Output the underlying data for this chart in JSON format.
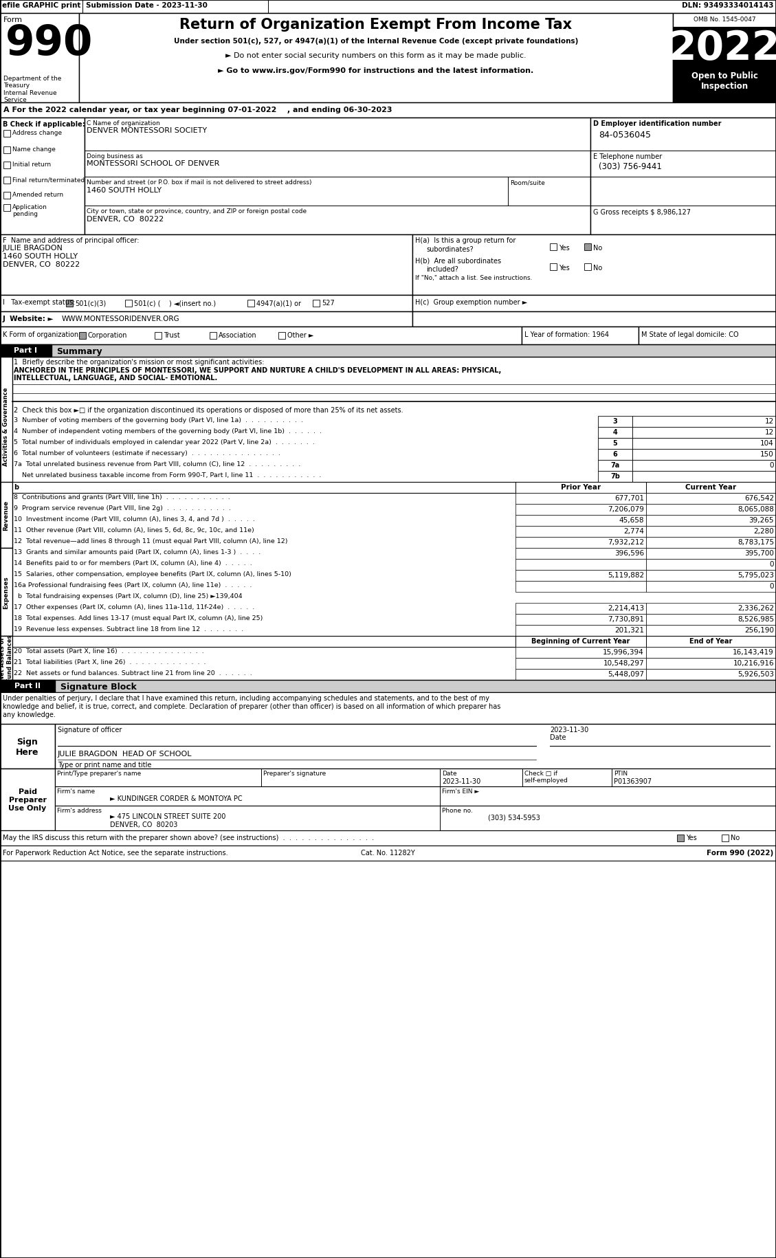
{
  "title_main": "Return of Organization Exempt From Income Tax",
  "subtitle1": "Under section 501(c), 527, or 4947(a)(1) of the Internal Revenue Code (except private foundations)",
  "subtitle2": "► Do not enter social security numbers on this form as it may be made public.",
  "subtitle3": "► Go to www.irs.gov/Form990 for instructions and the latest information.",
  "year": "2022",
  "omb": "OMB No. 1545-0047",
  "open_to_public": "Open to Public\nInspection",
  "efile_text": "efile GRAPHIC print",
  "submission_date": "Submission Date - 2023-11-30",
  "dln": "DLN: 93493334014143",
  "dept": "Department of the\nTreasury\nInternal Revenue\nService",
  "part_a": "A For the 2022 calendar year, or tax year beginning 07-01-2022    , and ending 06-30-2023",
  "check_b": "B Check if applicable:",
  "check_items": [
    "Address change",
    "Name change",
    "Initial return",
    "Final return/terminated",
    "Amended return",
    "Application\npending"
  ],
  "org_name_label": "C Name of organization",
  "org_name": "DENVER MONTESSORI SOCIETY",
  "dba_label": "Doing business as",
  "dba": "MONTESSORI SCHOOL OF DENVER",
  "address_label": "Number and street (or P.O. box if mail is not delivered to street address)",
  "address": "1460 SOUTH HOLLY",
  "room_label": "Room/suite",
  "city_label": "City or town, state or province, country, and ZIP or foreign postal code",
  "city": "DENVER, CO  80222",
  "ein_label": "D Employer identification number",
  "ein": "84-0536045",
  "phone_label": "E Telephone number",
  "phone": "(303) 756-9441",
  "gross_receipts": "G Gross receipts $ 8,986,127",
  "principal_label": "F  Name and address of principal officer:",
  "principal_name": "JULIE BRAGDON",
  "principal_addr1": "1460 SOUTH HOLLY",
  "principal_addr2": "DENVER, CO  80222",
  "ha_label": "H(a)  Is this a group return for",
  "ha_sub": "subordinates?",
  "ha_yes": "Yes",
  "ha_no": "No",
  "hb_label": "H(b)  Are all subordinates",
  "hb_sub": "included?",
  "hb_yes": "Yes",
  "hb_no": "No",
  "hb_note": "If \"No,\" attach a list. See instructions.",
  "hc_label": "H(c)  Group exemption number ►",
  "tax_exempt_label": "I   Tax-exempt status:",
  "tax_501c3": "501(c)(3)",
  "tax_501c": "501(c) (    ) ◄(insert no.)",
  "tax_4947": "4947(a)(1) or",
  "tax_527": "527",
  "website_label": "J  Website: ►",
  "website": "WWW.MONTESSORIDENVER.ORG",
  "form_org_label": "K Form of organization:",
  "form_corp": "Corporation",
  "form_trust": "Trust",
  "form_assoc": "Association",
  "form_other": "Other ►",
  "year_form_label": "L Year of formation: 1964",
  "state_label": "M State of legal domicile: CO",
  "sidebar_governance": "Activities & Governance",
  "sidebar_revenue": "Revenue",
  "sidebar_expenses": "Expenses",
  "sidebar_netassets": "Net Assets or\nFund Balances",
  "line2": "2  Check this box ►□ if the organization discontinued its operations or disposed of more than 25% of its net assets.",
  "line3_label": "3  Number of voting members of the governing body (Part VI, line 1a)  .  .  .  .  .  .  .  .  .  .",
  "line3_num": "3",
  "line3_val": "12",
  "line4_label": "4  Number of independent voting members of the governing body (Part VI, line 1b)  .  .  .  .  .  .",
  "line4_num": "4",
  "line4_val": "12",
  "line5_label": "5  Total number of individuals employed in calendar year 2022 (Part V, line 2a)  .  .  .  .  .  .  .",
  "line5_num": "5",
  "line5_val": "104",
  "line6_label": "6  Total number of volunteers (estimate if necessary)  .  .  .  .  .  .  .  .  .  .  .  .  .  .  .",
  "line6_num": "6",
  "line6_val": "150",
  "line7a_label": "7a  Total unrelated business revenue from Part VIII, column (C), line 12  .  .  .  .  .  .  .  .  .",
  "line7a_num": "7a",
  "line7a_val": "0",
  "line7b_label": "    Net unrelated business taxable income from Form 990-T, Part I, line 11  .  .  .  .  .  .  .  .  .  .  .",
  "line7b_num": "7b",
  "line7b_val": "",
  "col_prior": "Prior Year",
  "col_current": "Current Year",
  "line8_label": "8  Contributions and grants (Part VIII, line 1h)  .  .  .  .  .  .  .  .  .  .  .",
  "line8_prior": "677,701",
  "line8_current": "676,542",
  "line9_label": "9  Program service revenue (Part VIII, line 2g)  .  .  .  .  .  .  .  .  .  .  .",
  "line9_prior": "7,206,079",
  "line9_current": "8,065,088",
  "line10_label": "10  Investment income (Part VIII, column (A), lines 3, 4, and 7d )  .  .  .  .  .",
  "line10_prior": "45,658",
  "line10_current": "39,265",
  "line11_label": "11  Other revenue (Part VIII, column (A), lines 5, 6d, 8c, 9c, 10c, and 11e)",
  "line11_prior": "2,774",
  "line11_current": "2,280",
  "line12_label": "12  Total revenue—add lines 8 through 11 (must equal Part VIII, column (A), line 12)",
  "line12_prior": "7,932,212",
  "line12_current": "8,783,175",
  "line13_label": "13  Grants and similar amounts paid (Part IX, column (A), lines 1-3 )  .  .  .  .",
  "line13_prior": "396,596",
  "line13_current": "395,700",
  "line14_label": "14  Benefits paid to or for members (Part IX, column (A), line 4)  .  .  .  .  .",
  "line14_prior": "",
  "line14_current": "0",
  "line15_label": "15  Salaries, other compensation, employee benefits (Part IX, column (A), lines 5-10)",
  "line15_prior": "5,119,882",
  "line15_current": "5,795,023",
  "line16a_label": "16a Professional fundraising fees (Part IX, column (A), line 11e)  .  .  .  .  .",
  "line16a_prior": "",
  "line16a_current": "0",
  "line16b_label": "  b  Total fundraising expenses (Part IX, column (D), line 25) ►139,404",
  "line17_label": "17  Other expenses (Part IX, column (A), lines 11a-11d, 11f-24e)  .  .  .  .  .",
  "line17_prior": "2,214,413",
  "line17_current": "2,336,262",
  "line18_label": "18  Total expenses. Add lines 13-17 (must equal Part IX, column (A), line 25)",
  "line18_prior": "7,730,891",
  "line18_current": "8,526,985",
  "line19_label": "19  Revenue less expenses. Subtract line 18 from line 12  .  .  .  .  .  .  .",
  "line19_prior": "201,321",
  "line19_current": "256,190",
  "col_begin": "Beginning of Current Year",
  "col_end": "End of Year",
  "line20_label": "20  Total assets (Part X, line 16)  .  .  .  .  .  .  .  .  .  .  .  .  .  .",
  "line20_begin": "15,996,394",
  "line20_end": "16,143,419",
  "line21_label": "21  Total liabilities (Part X, line 26)  .  .  .  .  .  .  .  .  .  .  .  .  .",
  "line21_begin": "10,548,297",
  "line21_end": "10,216,916",
  "line22_label": "22  Net assets or fund balances. Subtract line 21 from line 20  .  .  .  .  .  .",
  "line22_begin": "5,448,097",
  "line22_end": "5,926,503",
  "sig_note_line1": "Under penalties of perjury, I declare that I have examined this return, including accompanying schedules and statements, and to the best of my",
  "sig_note_line2": "knowledge and belief, it is true, correct, and complete. Declaration of preparer (other than officer) is based on all information of which preparer has",
  "sig_note_line3": "any knowledge.",
  "sign_here": "Sign\nHere",
  "sig_officer_label": "Signature of officer",
  "sig_name": "JULIE BRAGDON  HEAD OF SCHOOL",
  "sig_type_label": "Type or print name and title",
  "paid_label": "Paid\nPreparer\nUse Only",
  "preparer_name_label": "Print/Type preparer's name",
  "preparer_sig_label": "Preparer's signature",
  "preparer_date_label": "Date",
  "preparer_check_label": "Check □ if\nself-employed",
  "preparer_ptin_label": "PTIN",
  "preparer_date": "2023-11-30",
  "preparer_ptin": "P01363907",
  "firm_name_label": "Firm's name",
  "firm_name": "► KUNDINGER CORDER & MONTOYA PC",
  "firm_ein_label": "Firm's EIN ►",
  "firm_addr_label": "Firm's address",
  "firm_addr": "► 475 LINCOLN STREET SUITE 200",
  "firm_city": "DENVER, CO  80203",
  "firm_phone_label": "Phone no.",
  "firm_phone": "(303) 534-5953",
  "discuss_label": "May the IRS discuss this return with the preparer shown above? (see instructions)  .  .  .  .  .  .  .  .  .  .  .  .  .  .  .",
  "discuss_yes": "Yes",
  "discuss_no": "No",
  "paperwork_label": "For Paperwork Reduction Act Notice, see the separate instructions.",
  "cat_no": "Cat. No. 11282Y",
  "form_bottom": "Form 990 (2022)"
}
